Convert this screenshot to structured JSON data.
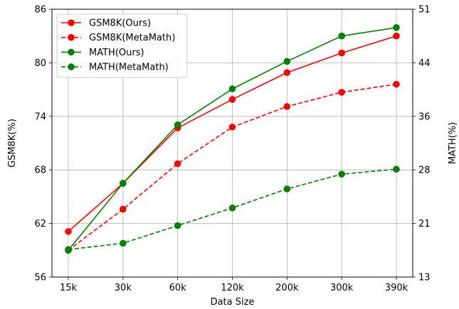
{
  "chart_data": {
    "type": "line",
    "xlabel": "Data Size",
    "ylabel": "GSM8K(%)",
    "y2label": "MATH(%)",
    "categories": [
      "15k",
      "30k",
      "60k",
      "120k",
      "200k",
      "300k",
      "390k"
    ],
    "ylim": [
      56,
      86
    ],
    "y2lim": [
      13,
      51
    ],
    "yticks": [
      "56",
      "62",
      "68",
      "74",
      "80",
      "86"
    ],
    "y2ticks": [
      "13",
      "21",
      "28",
      "36",
      "44",
      "51"
    ],
    "grid": true,
    "legend_position": "top-left",
    "series": [
      {
        "name": "GSM8K(Ours)",
        "axis": "left",
        "style": "solid",
        "color": "#ff0000",
        "values": [
          61.1,
          66.5,
          72.7,
          75.9,
          78.9,
          81.1,
          83.0
        ]
      },
      {
        "name": "GSM8K(MetaMath)",
        "axis": "left",
        "style": "dashed",
        "color": "#ff0000",
        "values": [
          59.0,
          63.6,
          68.7,
          72.8,
          75.1,
          76.7,
          77.6
        ]
      },
      {
        "name": "MATH(Ours)",
        "axis": "right",
        "style": "solid",
        "color": "#008000",
        "values": [
          16.8,
          26.3,
          34.6,
          39.7,
          43.6,
          47.2,
          48.4
        ]
      },
      {
        "name": "MATH(MetaMath)",
        "axis": "right",
        "style": "dashed",
        "color": "#008000",
        "values": [
          16.9,
          17.8,
          20.3,
          22.8,
          25.5,
          27.6,
          28.3
        ]
      }
    ]
  }
}
